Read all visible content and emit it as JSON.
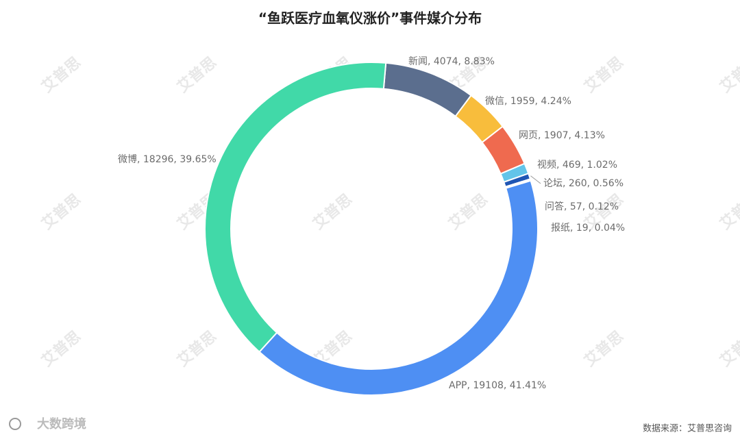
{
  "chart_data": {
    "type": "donut",
    "title": "“鱼跃医疗血氧仪涨价”事件媒介分布",
    "categories": [
      "新闻",
      "微信",
      "网页",
      "视频",
      "论坛",
      "问答",
      "报纸",
      "APP",
      "微博"
    ],
    "values": [
      4074,
      1959,
      1907,
      469,
      260,
      57,
      19,
      19108,
      18296
    ],
    "value_labels": [
      "新闻, 4074, 8.83%",
      "微信, 1959, 4.24%",
      "网页, 1907, 4.13%",
      "视频, 469, 1.02%",
      "论坛, 260, 0.56%",
      "问答, 57, 0.12%",
      "报纸, 19, 0.04%",
      "APP, 19108, 41.41%",
      "微博, 18296, 39.65%"
    ],
    "colors": [
      "#5b6e8e",
      "#f8bd3c",
      "#ef6a4f",
      "#62c4e9",
      "#1f56b4",
      "#2a3d8c",
      "#1c2a5e",
      "#4e8ff3",
      "#41d9a8"
    ],
    "source": "数据来源：艾普思咨询",
    "watermark": "艾普思",
    "brand": "大数跨境"
  }
}
